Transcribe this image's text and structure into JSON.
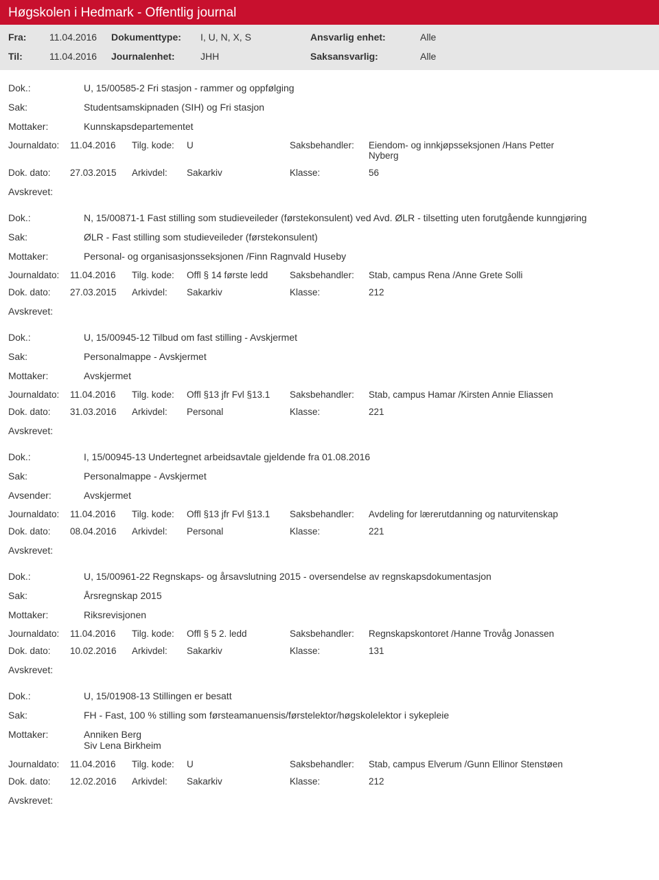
{
  "header": {
    "title": "Høgskolen i Hedmark - Offentlig journal",
    "fra_label": "Fra:",
    "fra_value": "11.04.2016",
    "til_label": "Til:",
    "til_value": "11.04.2016",
    "doktype_label": "Dokumenttype:",
    "doktype_value": "I, U, N, X, S",
    "journalenhet_label": "Journalenhet:",
    "journalenhet_value": "JHH",
    "ansvarlig_label": "Ansvarlig enhet:",
    "ansvarlig_value": "Alle",
    "saksansvarlig_label": "Saksansvarlig:",
    "saksansvarlig_value": "Alle"
  },
  "labels": {
    "dok": "Dok.:",
    "sak": "Sak:",
    "mottaker": "Mottaker:",
    "avsender": "Avsender:",
    "journaldato": "Journaldato:",
    "dokdato": "Dok. dato:",
    "tilgkode": "Tilg. kode:",
    "arkivdel": "Arkivdel:",
    "saksbehandler": "Saksbehandler:",
    "klasse": "Klasse:",
    "avskrevet": "Avskrevet:"
  },
  "entries": [
    {
      "dok": "U, 15/00585-2 Fri stasjon - rammer og oppfølging",
      "sak": "Studentsamskipnaden (SIH) og Fri stasjon",
      "party_label": "Mottaker:",
      "party": "Kunnskapsdepartementet",
      "journaldato": "11.04.2016",
      "tilgkode": "U",
      "saksbehandler": "Eiendom- og innkjøpsseksjonen /Hans Petter Nyberg",
      "dokdato": "27.03.2015",
      "arkivdel": "Sakarkiv",
      "klasse": "56"
    },
    {
      "dok": "N, 15/00871-1 Fast stilling som studieveileder (førstekonsulent) ved Avd. ØLR - tilsetting uten forutgående kunngjøring",
      "sak": "ØLR - Fast stilling som studieveileder (førstekonsulent)",
      "party_label": "Mottaker:",
      "party": "Personal- og organisasjonsseksjonen /Finn Ragnvald Huseby",
      "journaldato": "11.04.2016",
      "tilgkode": "Offl § 14 første ledd",
      "saksbehandler": "Stab, campus Rena /Anne Grete Solli",
      "dokdato": "27.03.2015",
      "arkivdel": "Sakarkiv",
      "klasse": "212"
    },
    {
      "dok": "U, 15/00945-12 Tilbud om fast stilling - Avskjermet",
      "sak": "Personalmappe - Avskjermet",
      "party_label": "Mottaker:",
      "party": "Avskjermet",
      "journaldato": "11.04.2016",
      "tilgkode": "Offl §13 jfr Fvl §13.1",
      "saksbehandler": "Stab, campus Hamar /Kirsten Annie Eliassen",
      "dokdato": "31.03.2016",
      "arkivdel": "Personal",
      "klasse": "221"
    },
    {
      "dok": "I, 15/00945-13 Undertegnet arbeidsavtale gjeldende fra 01.08.2016",
      "sak": "Personalmappe - Avskjermet",
      "party_label": "Avsender:",
      "party": "Avskjermet",
      "journaldato": "11.04.2016",
      "tilgkode": "Offl §13 jfr Fvl §13.1",
      "saksbehandler": "Avdeling for lærerutdanning og naturvitenskap",
      "dokdato": "08.04.2016",
      "arkivdel": "Personal",
      "klasse": "221"
    },
    {
      "dok": "U, 15/00961-22 Regnskaps- og årsavslutning 2015 - oversendelse av regnskapsdokumentasjon",
      "sak": "Årsregnskap 2015",
      "party_label": "Mottaker:",
      "party": "Riksrevisjonen",
      "journaldato": "11.04.2016",
      "tilgkode": "Offl § 5 2. ledd",
      "saksbehandler": "Regnskapskontoret /Hanne Trovåg Jonassen",
      "dokdato": "10.02.2016",
      "arkivdel": "Sakarkiv",
      "klasse": "131"
    },
    {
      "dok": "U, 15/01908-13 Stillingen er besatt",
      "sak": "FH - Fast, 100 % stilling som førsteamanuensis/førstelektor/høgskolelektor i sykepleie",
      "party_label": "Mottaker:",
      "party": "Anniken Berg\nSiv Lena Birkheim",
      "journaldato": "11.04.2016",
      "tilgkode": "U",
      "saksbehandler": "Stab, campus Elverum /Gunn Ellinor Stenstøen",
      "dokdato": "12.02.2016",
      "arkivdel": "Sakarkiv",
      "klasse": "212"
    }
  ]
}
